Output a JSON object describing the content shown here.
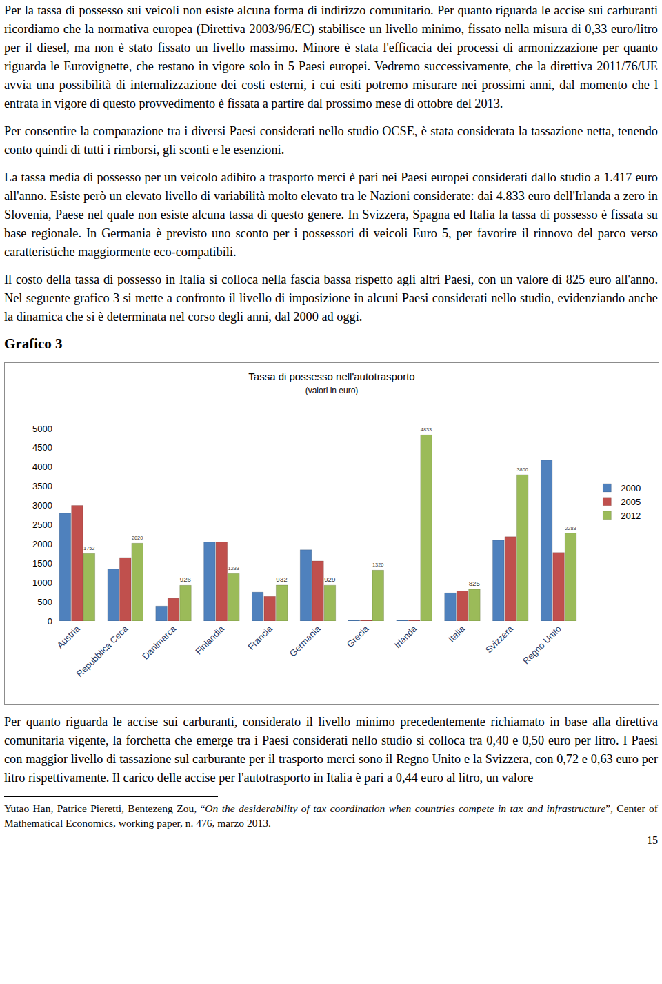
{
  "paragraphs_before": [
    "Per la tassa di possesso sui veicoli non esiste alcuna forma di indirizzo comunitario. Per quanto riguarda le accise sui carburanti ricordiamo che la normativa europea (Direttiva 2003/96/EC) stabilisce un livello minimo, fissato nella misura di 0,33 euro/litro per il diesel, ma non è stato fissato un livello massimo. Minore è stata l'efficacia dei processi di armonizzazione per quanto riguarda le Eurovignette, che restano in vigore solo in 5 Paesi europei. Vedremo successivamente, che la direttiva 2011/76/UE avvia una possibilità di internalizzazione dei costi esterni, i cui esiti potremo misurare nei prossimi anni, dal momento che l entrata in vigore di questo provvedimento è fissata a partire dal prossimo mese di ottobre del 2013.",
    "Per consentire la comparazione tra i diversi Paesi considerati nello studio OCSE, è stata considerata la tassazione netta, tenendo conto quindi di tutti i rimborsi, gli sconti e le esenzioni.",
    "La tassa media di possesso per un veicolo adibito a trasporto merci è pari nei Paesi europei considerati dallo studio a 1.417 euro all'anno. Esiste però un elevato livello di variabilità molto elevato tra le Nazioni considerate: dai 4.833 euro dell'Irlanda a zero in Slovenia, Paese nel quale non esiste alcuna tassa di questo genere. In Svizzera, Spagna ed Italia la tassa di possesso è fissata su base regionale. In Germania è previsto uno sconto per i possessori di veicoli Euro 5, per favorire il rinnovo del parco verso caratteristiche maggiormente eco-compatibili.",
    "Il costo della tassa di possesso in Italia si colloca nella fascia bassa rispetto agli altri Paesi, con un valore di 825 euro all'anno. Nel seguente grafico 3 si mette a confronto il livello di imposizione in alcuni Paesi considerati nello studio, evidenziando anche la dinamica che si è determinata nel corso degli anni, dal 2000 ad oggi."
  ],
  "figure_label": "Grafico 3",
  "chart_data": {
    "type": "bar",
    "title": "Tassa di possesso nell'autotrasporto",
    "subtitle": "(valori in euro)",
    "categories": [
      "Austria",
      "Repubblica Ceca",
      "Danimarca",
      "Finlandia",
      "Francia",
      "Germania",
      "Grecia",
      "Irlanda",
      "Italia",
      "Svizzera",
      "Regno Unito"
    ],
    "series": [
      {
        "name": "2000",
        "color": "#4f81bd",
        "values": [
          2800,
          1350,
          390,
          2050,
          750,
          1850,
          20,
          20,
          730,
          2100,
          4180
        ]
      },
      {
        "name": "2005",
        "color": "#c0504d",
        "values": [
          3000,
          1650,
          590,
          2050,
          640,
          1560,
          20,
          20,
          780,
          2190,
          1780
        ]
      },
      {
        "name": "2012",
        "color": "#9bbb59",
        "data_labels": true,
        "values": [
          1752,
          2020,
          926,
          1233,
          932,
          929,
          1320,
          4833,
          825,
          3800,
          2283
        ]
      }
    ],
    "ylim": [
      0,
      5000
    ],
    "yticks": [
      0,
      500,
      1000,
      1500,
      2000,
      2500,
      3000,
      3500,
      4000,
      4500,
      5000
    ],
    "grid": false,
    "legend": "right"
  },
  "paragraphs_after": [
    "Per quanto riguarda le accise sui carburanti, considerato il livello minimo precedentemente richiamato in base alla direttiva comunitaria vigente, la forchetta che emerge tra i Paesi considerati nello studio si colloca tra 0,40 e 0,50 euro per litro. I Paesi con maggior livello di tassazione sul carburante per il trasporto merci sono il Regno Unito e la Svizzera, con 0,72 e 0,63 euro per litro rispettivamente. Il carico delle accise per l'autotrasporto in Italia è pari a 0,44 euro al litro, un valore"
  ],
  "footnote": {
    "authors": "Yutao Han, Patrice Pieretti, Bentezeng Zou, “",
    "title": "On the desiderability of tax coordination when countries compete in tax and infrastructure",
    "rest": "”, Center of Mathematical Economics, working paper, n. 476, marzo 2013."
  },
  "page_number": "15"
}
